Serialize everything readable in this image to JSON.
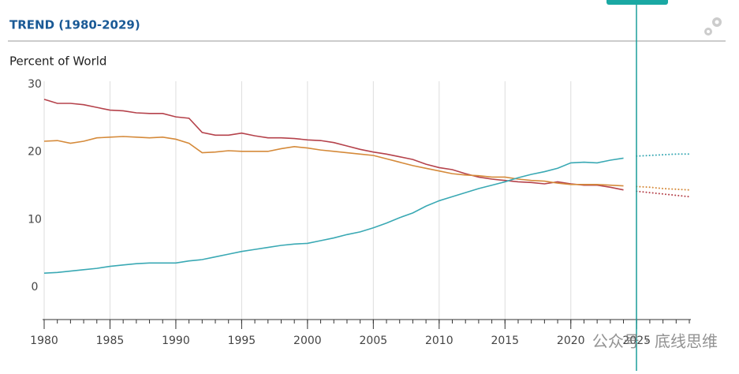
{
  "header": {
    "title": "TREND (1980-2029)"
  },
  "chart_data": {
    "type": "line",
    "y_label": "Percent of World",
    "x": [
      1980,
      1981,
      1982,
      1983,
      1984,
      1985,
      1986,
      1987,
      1988,
      1989,
      1990,
      1991,
      1992,
      1993,
      1994,
      1995,
      1996,
      1997,
      1998,
      1999,
      2000,
      2001,
      2002,
      2003,
      2004,
      2005,
      2006,
      2007,
      2008,
      2009,
      2010,
      2011,
      2012,
      2013,
      2014,
      2015,
      2016,
      2017,
      2018,
      2019,
      2020,
      2021,
      2022,
      2023,
      2024,
      2025,
      2026,
      2027,
      2028,
      2029
    ],
    "series": [
      {
        "color": "#b5424b",
        "dash": "solid",
        "values": [
          27.8,
          27.2,
          27.2,
          27.0,
          26.6,
          26.2,
          26.1,
          25.8,
          25.7,
          25.7,
          25.2,
          25.0,
          22.9,
          22.5,
          22.5,
          22.8,
          22.4,
          22.1,
          22.1,
          22.0,
          21.8,
          21.7,
          21.4,
          20.9,
          20.4,
          20.0,
          19.7,
          19.3,
          18.9,
          18.2,
          17.7,
          17.4,
          16.8,
          16.3,
          16.0,
          15.8,
          15.6,
          15.5,
          15.3,
          15.6,
          15.3,
          15.1,
          15.1,
          14.8,
          14.4,
          null,
          null,
          null,
          null,
          null
        ]
      },
      {
        "color": "#d58a3a",
        "dash": "solid",
        "values": [
          21.6,
          21.7,
          21.3,
          21.6,
          22.1,
          22.2,
          22.3,
          22.2,
          22.1,
          22.2,
          21.9,
          21.3,
          19.9,
          20.0,
          20.2,
          20.1,
          20.1,
          20.1,
          20.5,
          20.8,
          20.6,
          20.3,
          20.1,
          19.9,
          19.7,
          19.5,
          19.0,
          18.5,
          18.0,
          17.6,
          17.2,
          16.8,
          16.6,
          16.5,
          16.3,
          16.3,
          16.0,
          15.8,
          15.7,
          15.4,
          15.2,
          15.2,
          15.2,
          15.1,
          15.0,
          null,
          null,
          null,
          null,
          null
        ]
      },
      {
        "color": "#3aa9b4",
        "dash": "solid",
        "values": [
          2.1,
          2.2,
          2.4,
          2.6,
          2.8,
          3.1,
          3.3,
          3.5,
          3.6,
          3.6,
          3.6,
          3.9,
          4.1,
          4.5,
          4.9,
          5.3,
          5.6,
          5.9,
          6.2,
          6.4,
          6.5,
          6.9,
          7.3,
          7.8,
          8.2,
          8.8,
          9.5,
          10.3,
          11.0,
          12.0,
          12.8,
          13.4,
          14.0,
          14.6,
          15.1,
          15.6,
          16.2,
          16.7,
          17.1,
          17.6,
          18.4,
          18.5,
          18.4,
          18.8,
          19.1,
          null,
          null,
          null,
          null,
          null
        ]
      },
      {
        "color": "#b5424b",
        "dash": "dotted",
        "values": [
          null,
          null,
          null,
          null,
          null,
          null,
          null,
          null,
          null,
          null,
          null,
          null,
          null,
          null,
          null,
          null,
          null,
          null,
          null,
          null,
          null,
          null,
          null,
          null,
          null,
          null,
          null,
          null,
          null,
          null,
          null,
          null,
          null,
          null,
          null,
          null,
          null,
          null,
          null,
          null,
          null,
          null,
          null,
          null,
          null,
          14.2,
          14.0,
          13.8,
          13.6,
          13.4
        ]
      },
      {
        "color": "#d58a3a",
        "dash": "dotted",
        "values": [
          null,
          null,
          null,
          null,
          null,
          null,
          null,
          null,
          null,
          null,
          null,
          null,
          null,
          null,
          null,
          null,
          null,
          null,
          null,
          null,
          null,
          null,
          null,
          null,
          null,
          null,
          null,
          null,
          null,
          null,
          null,
          null,
          null,
          null,
          null,
          null,
          null,
          null,
          null,
          null,
          null,
          null,
          null,
          null,
          null,
          14.9,
          14.8,
          14.6,
          14.5,
          14.4
        ]
      },
      {
        "color": "#3aa9b4",
        "dash": "dotted",
        "values": [
          null,
          null,
          null,
          null,
          null,
          null,
          null,
          null,
          null,
          null,
          null,
          null,
          null,
          null,
          null,
          null,
          null,
          null,
          null,
          null,
          null,
          null,
          null,
          null,
          null,
          null,
          null,
          null,
          null,
          null,
          null,
          null,
          null,
          null,
          null,
          null,
          null,
          null,
          null,
          null,
          null,
          null,
          null,
          null,
          null,
          19.4,
          19.5,
          19.6,
          19.7,
          19.7
        ]
      }
    ],
    "xlim": [
      1980,
      2029
    ],
    "xticks": [
      1980,
      1985,
      1990,
      1995,
      2000,
      2005,
      2010,
      2015,
      2020,
      2025
    ],
    "ylim": [
      -5,
      30
    ],
    "yticks": [
      0,
      10,
      20,
      30
    ],
    "grid": "x"
  },
  "watermark": "公众号 · 底线思维"
}
